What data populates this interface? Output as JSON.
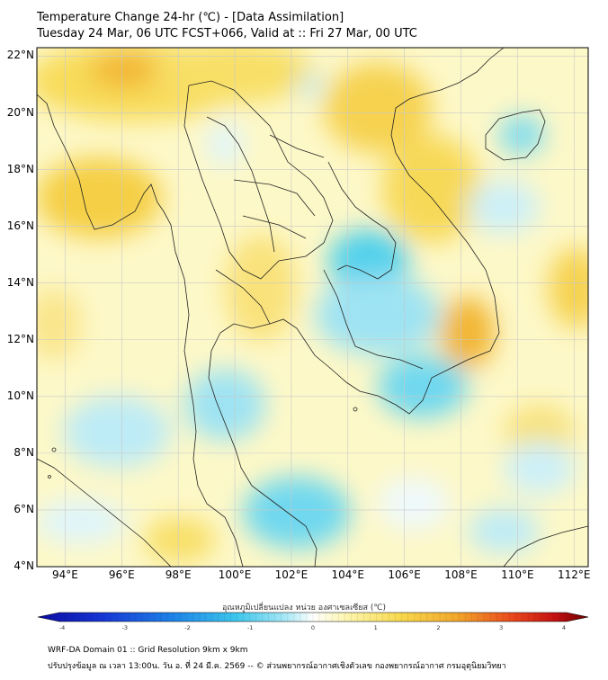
{
  "title": {
    "line1": "Temperature Change 24-hr (℃) - [Data Assimilation]",
    "line2": "Tuesday 24 Mar, 06 UTC FCST+066, Valid at :: Fri 27 Mar, 00 UTC"
  },
  "map": {
    "lat_labels": [
      "22°N",
      "20°N",
      "18°N",
      "16°N",
      "14°N",
      "12°N",
      "10°N",
      "8°N",
      "6°N",
      "4°N"
    ],
    "lon_labels": [
      "94°E",
      "96°E",
      "98°E",
      "100°E",
      "102°E",
      "104°E",
      "106°E",
      "108°E",
      "110°E",
      "112°E"
    ],
    "extent": {
      "lon_min": 93,
      "lon_max": 112.5,
      "lat_min": 4,
      "lat_max": 22.3
    }
  },
  "colorbar": {
    "title": "อุณหภูมิเปลี่ยนแปลง หน่วย องศาเซลเซียส (℃)",
    "ticks": [
      "-4",
      "-3",
      "-2",
      "-1",
      "0",
      "1",
      "2",
      "3",
      "4"
    ],
    "min": -4,
    "max": 4
  },
  "footer": {
    "line1": "WRF-DA Domain 01 :: Grid Resolution 9km x 9km",
    "line2": "ปรับปรุงข้อมูล ณ เวลา 13:00น. วัน อ. ที่ 24 มี.ค. 2569 -- © ส่วนพยากรณ์อากาศเชิงตัวเลข กองพยากรณ์อากาศ กรมอุตุนิยมวิทยา"
  },
  "colors": {
    "warm_light": "#fdf6b8",
    "warm_mid": "#f8dc5a",
    "warm_strong": "#f2b531",
    "hot": "#ee8a2a",
    "cool_light": "#dff5fb",
    "cool_mid": "#9ee3f3",
    "cool_strong": "#4fd0ec"
  }
}
